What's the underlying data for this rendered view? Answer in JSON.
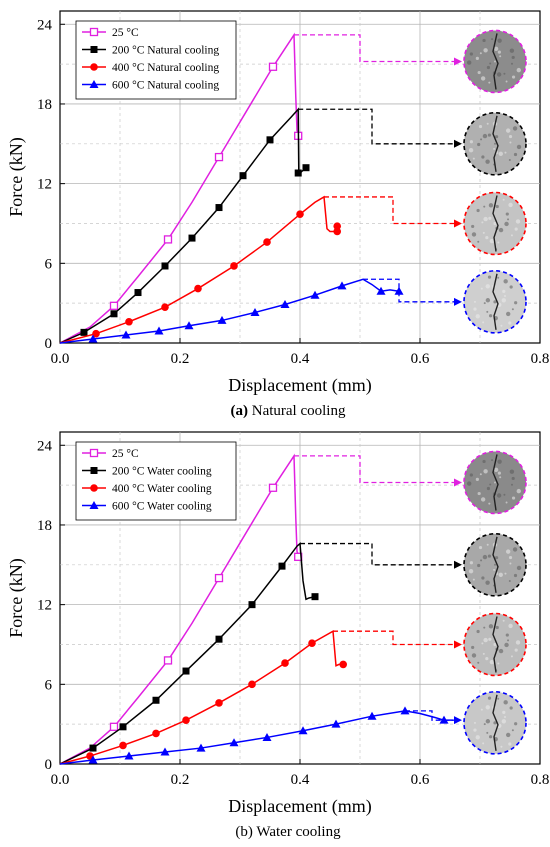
{
  "chart_data": [
    {
      "type": "line",
      "caption_prefix": "(a)",
      "caption_text": "Natural cooling",
      "xlabel": "Displacement (mm)",
      "ylabel": "Force (kN)",
      "xlim": [
        0,
        0.8
      ],
      "ylim": [
        0,
        25
      ],
      "xticks": [
        "0.0",
        "0.2",
        "0.4",
        "0.6",
        "0.8"
      ],
      "yticks": [
        "0",
        "6",
        "12",
        "18",
        "24"
      ],
      "grid": true,
      "legend_position": "top-left",
      "series": [
        {
          "name": "25 °C",
          "color": "#e020e0",
          "marker": "square-open",
          "x": [
            0,
            0.05,
            0.09,
            0.13,
            0.18,
            0.22,
            0.265,
            0.31,
            0.355,
            0.39,
            0.393,
            0.395,
            0.397,
            0.4
          ],
          "y": [
            0,
            1.2,
            2.8,
            5.0,
            7.8,
            10.6,
            14.0,
            17.4,
            20.8,
            23.2,
            18.5,
            16.0,
            15.8,
            15.6
          ],
          "marker_x": [
            0.09,
            0.18,
            0.265,
            0.355,
            0.397
          ],
          "marker_y": [
            2.8,
            7.8,
            14.0,
            20.8,
            15.6
          ]
        },
        {
          "name": "200 °C Natural cooling",
          "color": "#000000",
          "marker": "square",
          "x": [
            0,
            0.04,
            0.09,
            0.13,
            0.175,
            0.22,
            0.265,
            0.305,
            0.35,
            0.385,
            0.397,
            0.398,
            0.4,
            0.41
          ],
          "y": [
            0,
            0.8,
            2.2,
            3.8,
            5.8,
            7.9,
            10.2,
            12.6,
            15.3,
            17.0,
            17.6,
            12.8,
            12.8,
            13.2
          ],
          "marker_x": [
            0.04,
            0.09,
            0.13,
            0.175,
            0.22,
            0.265,
            0.305,
            0.35,
            0.397,
            0.41
          ],
          "marker_y": [
            0.8,
            2.2,
            3.8,
            5.8,
            7.9,
            10.2,
            12.6,
            15.3,
            12.8,
            13.2
          ],
          "outline": [
            [
              0.397,
              17.6
            ],
            [
              0.52,
              17.6
            ],
            [
              0.52,
              15.0
            ],
            [
              0.64,
              15.0
            ]
          ]
        },
        {
          "name": "400 °C Natural cooling",
          "color": "#ff0000",
          "marker": "circle",
          "x": [
            0,
            0.06,
            0.115,
            0.175,
            0.23,
            0.29,
            0.345,
            0.4,
            0.425,
            0.44,
            0.445,
            0.45,
            0.462,
            0.462
          ],
          "y": [
            0,
            0.7,
            1.6,
            2.7,
            4.1,
            5.8,
            7.6,
            9.7,
            10.6,
            11.0,
            8.6,
            8.4,
            8.4,
            8.8
          ],
          "marker_x": [
            0.06,
            0.115,
            0.175,
            0.23,
            0.29,
            0.345,
            0.4,
            0.462,
            0.462
          ],
          "marker_y": [
            0.7,
            1.6,
            2.7,
            4.1,
            5.8,
            7.6,
            9.7,
            8.4,
            8.8
          ],
          "outline": [
            [
              0.44,
              11.0
            ],
            [
              0.555,
              11.0
            ],
            [
              0.555,
              9.0
            ],
            [
              0.64,
              9.0
            ]
          ]
        },
        {
          "name": "600 °C Natural cooling",
          "color": "#0000ff",
          "marker": "triangle",
          "x": [
            0,
            0.055,
            0.11,
            0.165,
            0.215,
            0.27,
            0.325,
            0.375,
            0.425,
            0.47,
            0.505,
            0.52,
            0.535,
            0.55,
            0.565
          ],
          "y": [
            0,
            0.3,
            0.6,
            0.9,
            1.3,
            1.7,
            2.3,
            2.9,
            3.6,
            4.3,
            4.8,
            4.4,
            3.9,
            4.0,
            3.9
          ],
          "marker_x": [
            0.055,
            0.11,
            0.165,
            0.215,
            0.27,
            0.325,
            0.375,
            0.425,
            0.47,
            0.535,
            0.565
          ],
          "marker_y": [
            0.3,
            0.6,
            0.9,
            1.3,
            1.7,
            2.3,
            2.9,
            3.6,
            4.3,
            3.9,
            3.9
          ],
          "outline": [
            [
              0.505,
              4.8
            ],
            [
              0.565,
              4.8
            ],
            [
              0.565,
              3.1
            ],
            [
              0.6,
              3.1
            ]
          ]
        }
      ],
      "specimen_images": [
        {
          "name": "25C",
          "color": "#e020e0",
          "x": 0.725,
          "y": 21.2,
          "shade": "#8c8c8c"
        },
        {
          "name": "200C",
          "color": "#000000",
          "x": 0.725,
          "y": 15.0,
          "shade": "#b0b0b0"
        },
        {
          "name": "400C",
          "color": "#ff0000",
          "x": 0.725,
          "y": 9.0,
          "shade": "#c4c4c4"
        },
        {
          "name": "600C",
          "color": "#0000ff",
          "x": 0.725,
          "y": 3.1,
          "shade": "#cfcfcf"
        }
      ]
    },
    {
      "type": "line",
      "caption_prefix": "(b)",
      "caption_text": "Water cooling",
      "xlabel": "Displacement (mm)",
      "ylabel": "Force (kN)",
      "xlim": [
        0,
        0.8
      ],
      "ylim": [
        0,
        25
      ],
      "xticks": [
        "0.0",
        "0.2",
        "0.4",
        "0.6",
        "0.8"
      ],
      "yticks": [
        "0",
        "6",
        "12",
        "18",
        "24"
      ],
      "grid": true,
      "legend_position": "top-left",
      "series": [
        {
          "name": "25 °C",
          "color": "#e020e0",
          "marker": "square-open",
          "x": [
            0,
            0.05,
            0.09,
            0.13,
            0.18,
            0.22,
            0.265,
            0.31,
            0.355,
            0.39,
            0.393,
            0.395,
            0.397,
            0.4
          ],
          "y": [
            0,
            1.2,
            2.8,
            5.0,
            7.8,
            10.6,
            14.0,
            17.4,
            20.8,
            23.2,
            18.5,
            16.0,
            15.8,
            15.6
          ],
          "marker_x": [
            0.09,
            0.18,
            0.265,
            0.355,
            0.397
          ],
          "marker_y": [
            2.8,
            7.8,
            14.0,
            20.8,
            15.6
          ]
        },
        {
          "name": "200 °C Water cooling",
          "color": "#000000",
          "marker": "square",
          "x": [
            0,
            0.055,
            0.105,
            0.16,
            0.21,
            0.265,
            0.32,
            0.37,
            0.395,
            0.4,
            0.405,
            0.41,
            0.415,
            0.425
          ],
          "y": [
            0,
            1.2,
            2.8,
            4.8,
            7.0,
            9.4,
            12.0,
            14.9,
            16.4,
            16.6,
            13.8,
            12.4,
            12.5,
            12.6
          ],
          "marker_x": [
            0.055,
            0.105,
            0.16,
            0.21,
            0.265,
            0.32,
            0.37,
            0.425
          ],
          "marker_y": [
            1.2,
            2.8,
            4.8,
            7.0,
            9.4,
            12.0,
            14.9,
            12.6
          ],
          "outline": [
            [
              0.4,
              16.6
            ],
            [
              0.52,
              16.6
            ],
            [
              0.52,
              15.0
            ],
            [
              0.64,
              15.0
            ]
          ]
        },
        {
          "name": "400 °C Water cooling",
          "color": "#ff0000",
          "marker": "circle",
          "x": [
            0,
            0.05,
            0.105,
            0.16,
            0.21,
            0.265,
            0.32,
            0.375,
            0.42,
            0.455,
            0.46,
            0.465,
            0.472
          ],
          "y": [
            0,
            0.6,
            1.4,
            2.3,
            3.3,
            4.6,
            6.0,
            7.6,
            9.1,
            10.0,
            7.4,
            7.5,
            7.5
          ],
          "marker_x": [
            0.05,
            0.105,
            0.16,
            0.21,
            0.265,
            0.32,
            0.375,
            0.42,
            0.472
          ],
          "marker_y": [
            0.6,
            1.4,
            2.3,
            3.3,
            4.6,
            6.0,
            7.6,
            9.1,
            7.5
          ],
          "outline": [
            [
              0.455,
              10.0
            ],
            [
              0.555,
              10.0
            ],
            [
              0.555,
              9.0
            ],
            [
              0.64,
              9.0
            ]
          ]
        },
        {
          "name": "600 °C Water cooling",
          "color": "#0000ff",
          "marker": "triangle",
          "x": [
            0,
            0.055,
            0.115,
            0.175,
            0.235,
            0.29,
            0.345,
            0.405,
            0.46,
            0.52,
            0.575,
            0.6,
            0.625,
            0.64,
            0.655
          ],
          "y": [
            0,
            0.3,
            0.6,
            0.9,
            1.2,
            1.6,
            2.0,
            2.5,
            3.0,
            3.6,
            4.0,
            3.8,
            3.5,
            3.3,
            3.3
          ],
          "marker_x": [
            0.055,
            0.115,
            0.175,
            0.235,
            0.29,
            0.345,
            0.405,
            0.46,
            0.52,
            0.575,
            0.64
          ],
          "marker_y": [
            0.3,
            0.6,
            0.9,
            1.2,
            1.6,
            2.0,
            2.5,
            3.0,
            3.6,
            4.0,
            3.3
          ],
          "outline": [
            [
              0.575,
              4.0
            ],
            [
              0.62,
              4.0
            ],
            [
              0.62,
              3.3
            ],
            [
              0.66,
              3.3
            ]
          ]
        }
      ],
      "specimen_images": [
        {
          "name": "25C",
          "color": "#e020e0",
          "x": 0.725,
          "y": 21.2,
          "shade": "#8a8a8a"
        },
        {
          "name": "200C",
          "color": "#000000",
          "x": 0.725,
          "y": 15.0,
          "shade": "#a8a8a8"
        },
        {
          "name": "400C",
          "color": "#ff0000",
          "x": 0.725,
          "y": 9.0,
          "shade": "#bcbcbc"
        },
        {
          "name": "600C",
          "color": "#0000ff",
          "x": 0.725,
          "y": 3.1,
          "shade": "#c8c8c8"
        }
      ]
    }
  ]
}
